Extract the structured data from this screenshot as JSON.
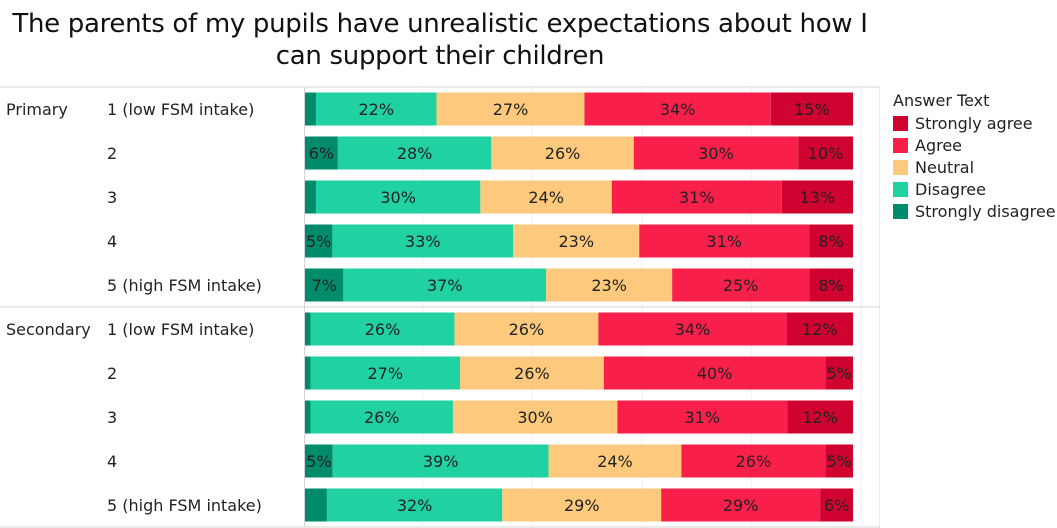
{
  "chart_data": {
    "type": "bar",
    "orientation": "horizontal-stacked-100",
    "title": "The parents of my pupils have unrealistic expectations about how I can support their children",
    "title_lines": [
      "The parents of my pupils have unrealistic expectations about how I",
      "can support their children"
    ],
    "xlabel": "",
    "ylabel": "",
    "xlim": [
      0,
      100
    ],
    "grid": true,
    "legend": {
      "title": "Answer Text",
      "position": "right"
    },
    "series_order": [
      "Strongly disagree",
      "Disagree",
      "Neutral",
      "Agree",
      "Strongly agree"
    ],
    "legend_order": [
      "Strongly agree",
      "Agree",
      "Neutral",
      "Disagree",
      "Strongly disagree"
    ],
    "colors": {
      "Strongly agree": "#d0022f",
      "Agree": "#f81f4a",
      "Neutral": "#fdc97c",
      "Disagree": "#20d1a2",
      "Strongly disagree": "#008c6a"
    },
    "groups": [
      {
        "name": "Primary",
        "rows": [
          {
            "label": "1 (low FSM intake)",
            "values": [
              2,
              22,
              27,
              34,
              15
            ],
            "shown_labels": [
              "",
              "22%",
              "27%",
              "34%",
              "15%"
            ]
          },
          {
            "label": "2",
            "values": [
              6,
              28,
              26,
              30,
              10
            ],
            "shown_labels": [
              "6%",
              "28%",
              "26%",
              "30%",
              "10%"
            ]
          },
          {
            "label": "3",
            "values": [
              2,
              30,
              24,
              31,
              13
            ],
            "shown_labels": [
              "",
              "30%",
              "24%",
              "31%",
              "13%"
            ]
          },
          {
            "label": "4",
            "values": [
              5,
              33,
              23,
              31,
              8
            ],
            "shown_labels": [
              "5%",
              "33%",
              "23%",
              "31%",
              "8%"
            ]
          },
          {
            "label": "5 (high FSM intake)",
            "values": [
              7,
              37,
              23,
              25,
              8
            ],
            "shown_labels": [
              "7%",
              "37%",
              "23%",
              "25%",
              "8%"
            ]
          }
        ]
      },
      {
        "name": "Secondary",
        "rows": [
          {
            "label": "1 (low FSM intake)",
            "values": [
              1,
              26,
              26,
              34,
              12
            ],
            "shown_labels": [
              "",
              "26%",
              "26%",
              "34%",
              "12%"
            ]
          },
          {
            "label": "2",
            "values": [
              1,
              27,
              26,
              40,
              5
            ],
            "shown_labels": [
              "",
              "27%",
              "26%",
              "40%",
              "5%"
            ]
          },
          {
            "label": "3",
            "values": [
              1,
              26,
              30,
              31,
              12
            ],
            "shown_labels": [
              "",
              "26%",
              "30%",
              "31%",
              "12%"
            ]
          },
          {
            "label": "4",
            "values": [
              5,
              39,
              24,
              26,
              5
            ],
            "shown_labels": [
              "5%",
              "39%",
              "24%",
              "26%",
              "5%"
            ]
          },
          {
            "label": "5 (high FSM intake)",
            "values": [
              4,
              32,
              29,
              29,
              6
            ],
            "shown_labels": [
              "",
              "32%",
              "29%",
              "29%",
              "6%"
            ]
          }
        ]
      }
    ]
  }
}
